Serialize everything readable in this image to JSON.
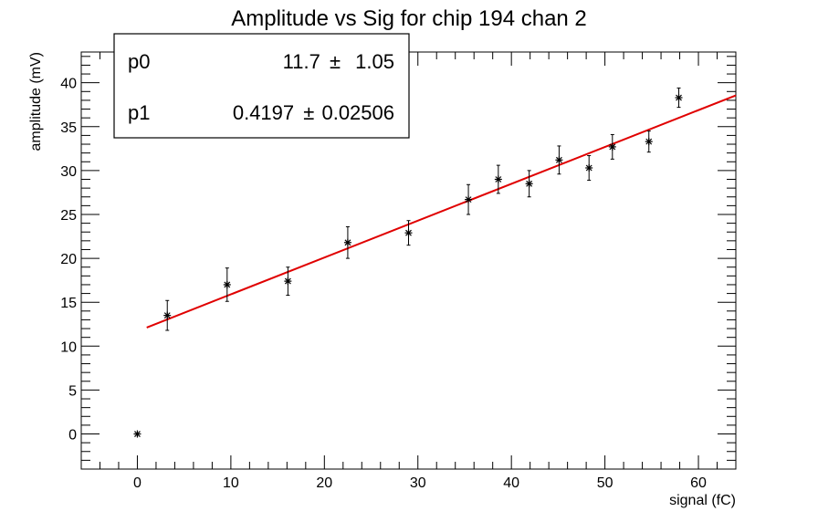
{
  "chart_data": {
    "type": "scatter",
    "title": "Amplitude vs Sig for chip 194 chan 2",
    "xlabel": "signal (fC)",
    "ylabel": "amplitude (mV)",
    "xlim": [
      -6,
      64
    ],
    "ylim": [
      -4,
      43.5
    ],
    "x_ticks": [
      0,
      10,
      20,
      30,
      40,
      50,
      60
    ],
    "y_ticks": [
      0,
      5,
      10,
      15,
      20,
      25,
      30,
      35,
      40
    ],
    "grid": false,
    "series": [
      {
        "marker": "star",
        "color": "#000000",
        "points": [
          {
            "x": 0,
            "y": 0,
            "err": 0
          },
          {
            "x": 3.2,
            "y": 13.5,
            "err": 1.7
          },
          {
            "x": 9.6,
            "y": 17.0,
            "err": 1.9
          },
          {
            "x": 16.1,
            "y": 17.4,
            "err": 1.6
          },
          {
            "x": 22.5,
            "y": 21.8,
            "err": 1.8
          },
          {
            "x": 29.0,
            "y": 22.9,
            "err": 1.4
          },
          {
            "x": 35.4,
            "y": 26.7,
            "err": 1.7
          },
          {
            "x": 38.6,
            "y": 29.0,
            "err": 1.6
          },
          {
            "x": 41.9,
            "y": 28.5,
            "err": 1.5
          },
          {
            "x": 45.1,
            "y": 31.2,
            "err": 1.6
          },
          {
            "x": 48.3,
            "y": 30.3,
            "err": 1.4
          },
          {
            "x": 50.8,
            "y": 32.7,
            "err": 1.4
          },
          {
            "x": 54.7,
            "y": 33.3,
            "err": 1.2
          },
          {
            "x": 57.9,
            "y": 38.3,
            "err": 1.1
          }
        ]
      }
    ],
    "fit": {
      "color": "#e00000",
      "x_start": 1.0,
      "x_end": 64,
      "p0": 11.7,
      "p1": 0.4197
    },
    "stats_box": {
      "rows": [
        {
          "label": "p0",
          "value": "11.7",
          "pm": "±",
          "error": "1.05"
        },
        {
          "label": "p1",
          "value": "0.4197",
          "pm": "±",
          "error": "0.02506"
        }
      ]
    }
  }
}
